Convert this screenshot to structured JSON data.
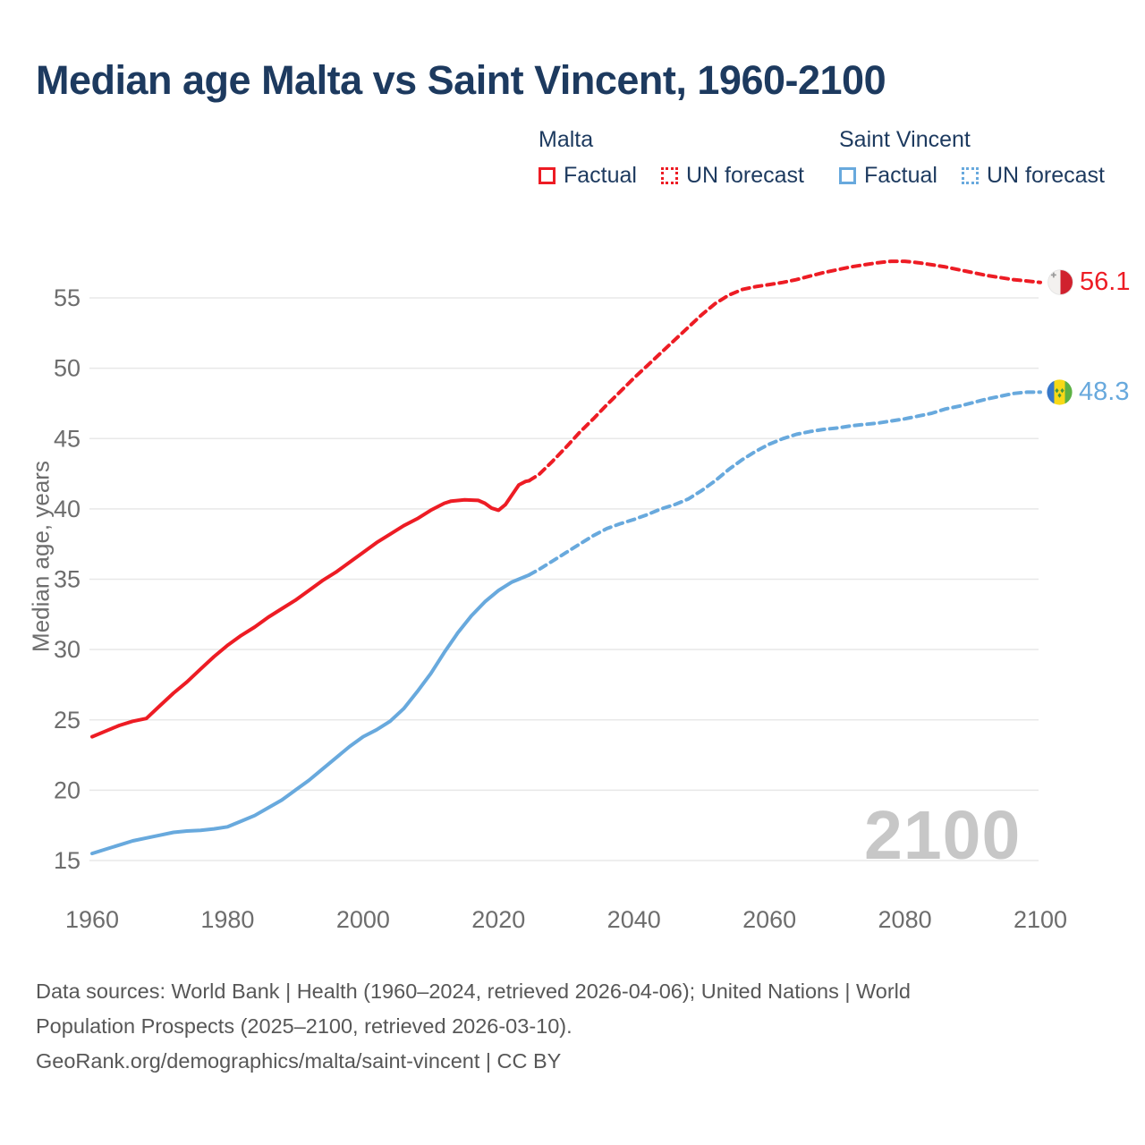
{
  "title": "Median age Malta vs Saint Vincent, 1960-2100",
  "legend": {
    "malta": {
      "header": "Malta",
      "factual": "Factual",
      "forecast": "UN forecast"
    },
    "saint_vincent": {
      "header": "Saint Vincent",
      "factual": "Factual",
      "forecast": "UN forecast"
    }
  },
  "y_axis_label": "Median age, years",
  "watermark": "2100",
  "end_labels": {
    "malta": {
      "value": "56.1",
      "flag": "malta-flag-icon"
    },
    "saint_vincent": {
      "value": "48.3",
      "flag": "saint-vincent-flag-icon"
    }
  },
  "footer": {
    "line1": "Data sources: World Bank | Health (1960–2024, retrieved 2026-04-06); United Nations | World",
    "line2": "Population Prospects (2025–2100, retrieved 2026-03-10).",
    "line3": "GeoRank.org/demographics/malta/saint-vincent | CC BY"
  },
  "colors": {
    "malta_line": "#ed1c24",
    "saint_vincent_line": "#68a9dd",
    "title_text": "#1d3a5f",
    "axis_text": "#6d6d6d",
    "gridline": "#e8e8e8",
    "footer_text": "#575757",
    "watermark": "#c7c7c7",
    "malta_flag_red": "#d0212e",
    "sv_flag_blue": "#3777c8",
    "sv_flag_yellow": "#f7d917",
    "sv_flag_green": "#5cb144"
  },
  "chart_data": {
    "type": "line",
    "title": "Median age Malta vs Saint Vincent, 1960-2100",
    "xlabel": "",
    "ylabel": "Median age, years",
    "xlim": [
      1960,
      2100
    ],
    "ylim": [
      15,
      58
    ],
    "x_ticks": [
      1960,
      1980,
      2000,
      2020,
      2040,
      2060,
      2080,
      2100
    ],
    "y_ticks": [
      15,
      20,
      25,
      30,
      35,
      40,
      45,
      50,
      55
    ],
    "grid": "horizontal-only",
    "legend_position": "top-right",
    "series": [
      {
        "name": "Malta Factual",
        "style": "solid",
        "color": "#ed1c24",
        "points": [
          [
            1960,
            23.8
          ],
          [
            1962,
            24.2
          ],
          [
            1964,
            24.6
          ],
          [
            1966,
            24.9
          ],
          [
            1968,
            25.1
          ],
          [
            1970,
            26.0
          ],
          [
            1972,
            26.9
          ],
          [
            1974,
            27.7
          ],
          [
            1976,
            28.6
          ],
          [
            1978,
            29.5
          ],
          [
            1980,
            30.3
          ],
          [
            1982,
            31.0
          ],
          [
            1984,
            31.6
          ],
          [
            1986,
            32.3
          ],
          [
            1988,
            32.9
          ],
          [
            1990,
            33.5
          ],
          [
            1992,
            34.2
          ],
          [
            1994,
            34.9
          ],
          [
            1996,
            35.5
          ],
          [
            1998,
            36.2
          ],
          [
            2000,
            36.9
          ],
          [
            2002,
            37.6
          ],
          [
            2004,
            38.2
          ],
          [
            2006,
            38.8
          ],
          [
            2008,
            39.3
          ],
          [
            2010,
            39.9
          ],
          [
            2012,
            40.4
          ],
          [
            2013,
            40.55
          ],
          [
            2015,
            40.65
          ],
          [
            2017,
            40.6
          ],
          [
            2018,
            40.4
          ],
          [
            2019,
            40.05
          ],
          [
            2020,
            39.9
          ],
          [
            2021,
            40.3
          ],
          [
            2022,
            41.0
          ],
          [
            2023,
            41.7
          ],
          [
            2024,
            41.95
          ],
          [
            2024.5,
            42.0
          ]
        ]
      },
      {
        "name": "Malta UN forecast",
        "style": "dashed",
        "color": "#ed1c24",
        "points": [
          [
            2024.5,
            42.0
          ],
          [
            2025,
            42.15
          ],
          [
            2026,
            42.45
          ],
          [
            2028,
            43.4
          ],
          [
            2030,
            44.4
          ],
          [
            2032,
            45.45
          ],
          [
            2034,
            46.4
          ],
          [
            2036,
            47.4
          ],
          [
            2038,
            48.35
          ],
          [
            2040,
            49.3
          ],
          [
            2042,
            50.2
          ],
          [
            2044,
            51.1
          ],
          [
            2046,
            52.0
          ],
          [
            2048,
            52.9
          ],
          [
            2050,
            53.8
          ],
          [
            2052,
            54.6
          ],
          [
            2054,
            55.2
          ],
          [
            2056,
            55.6
          ],
          [
            2058,
            55.8
          ],
          [
            2060,
            55.95
          ],
          [
            2062,
            56.1
          ],
          [
            2064,
            56.3
          ],
          [
            2066,
            56.55
          ],
          [
            2068,
            56.8
          ],
          [
            2070,
            57.0
          ],
          [
            2072,
            57.2
          ],
          [
            2074,
            57.35
          ],
          [
            2076,
            57.5
          ],
          [
            2078,
            57.6
          ],
          [
            2080,
            57.6
          ],
          [
            2082,
            57.5
          ],
          [
            2084,
            57.35
          ],
          [
            2086,
            57.2
          ],
          [
            2088,
            57.0
          ],
          [
            2090,
            56.8
          ],
          [
            2092,
            56.6
          ],
          [
            2094,
            56.45
          ],
          [
            2096,
            56.3
          ],
          [
            2098,
            56.2
          ],
          [
            2100,
            56.1
          ]
        ]
      },
      {
        "name": "Saint Vincent Factual",
        "style": "solid",
        "color": "#68a9dd",
        "points": [
          [
            1960,
            15.5
          ],
          [
            1962,
            15.8
          ],
          [
            1964,
            16.1
          ],
          [
            1966,
            16.4
          ],
          [
            1968,
            16.6
          ],
          [
            1970,
            16.8
          ],
          [
            1972,
            17.0
          ],
          [
            1974,
            17.1
          ],
          [
            1976,
            17.15
          ],
          [
            1978,
            17.25
          ],
          [
            1980,
            17.4
          ],
          [
            1982,
            17.8
          ],
          [
            1984,
            18.2
          ],
          [
            1986,
            18.75
          ],
          [
            1988,
            19.3
          ],
          [
            1990,
            20.0
          ],
          [
            1992,
            20.7
          ],
          [
            1994,
            21.5
          ],
          [
            1996,
            22.3
          ],
          [
            1998,
            23.1
          ],
          [
            2000,
            23.8
          ],
          [
            2002,
            24.3
          ],
          [
            2004,
            24.9
          ],
          [
            2006,
            25.8
          ],
          [
            2008,
            27.0
          ],
          [
            2010,
            28.3
          ],
          [
            2012,
            29.8
          ],
          [
            2014,
            31.2
          ],
          [
            2016,
            32.4
          ],
          [
            2018,
            33.4
          ],
          [
            2020,
            34.2
          ],
          [
            2022,
            34.8
          ],
          [
            2024,
            35.2
          ],
          [
            2024.5,
            35.3
          ]
        ]
      },
      {
        "name": "Saint Vincent UN forecast",
        "style": "dashed",
        "color": "#68a9dd",
        "points": [
          [
            2024.5,
            35.3
          ],
          [
            2026,
            35.7
          ],
          [
            2028,
            36.3
          ],
          [
            2030,
            36.9
          ],
          [
            2032,
            37.5
          ],
          [
            2034,
            38.1
          ],
          [
            2036,
            38.6
          ],
          [
            2038,
            38.95
          ],
          [
            2040,
            39.25
          ],
          [
            2042,
            39.6
          ],
          [
            2044,
            40.0
          ],
          [
            2046,
            40.3
          ],
          [
            2048,
            40.7
          ],
          [
            2050,
            41.3
          ],
          [
            2052,
            42.0
          ],
          [
            2054,
            42.8
          ],
          [
            2056,
            43.5
          ],
          [
            2058,
            44.1
          ],
          [
            2060,
            44.6
          ],
          [
            2062,
            45.0
          ],
          [
            2064,
            45.3
          ],
          [
            2066,
            45.5
          ],
          [
            2068,
            45.65
          ],
          [
            2070,
            45.75
          ],
          [
            2072,
            45.9
          ],
          [
            2074,
            46.0
          ],
          [
            2076,
            46.1
          ],
          [
            2078,
            46.25
          ],
          [
            2080,
            46.4
          ],
          [
            2082,
            46.6
          ],
          [
            2084,
            46.8
          ],
          [
            2086,
            47.1
          ],
          [
            2088,
            47.3
          ],
          [
            2090,
            47.55
          ],
          [
            2092,
            47.8
          ],
          [
            2094,
            48.0
          ],
          [
            2096,
            48.2
          ],
          [
            2098,
            48.3
          ],
          [
            2100,
            48.3
          ]
        ]
      }
    ],
    "end_value_labels": [
      {
        "series": "Malta",
        "year": 2100,
        "value": 56.1
      },
      {
        "series": "Saint Vincent",
        "year": 2100,
        "value": 48.3
      }
    ]
  }
}
